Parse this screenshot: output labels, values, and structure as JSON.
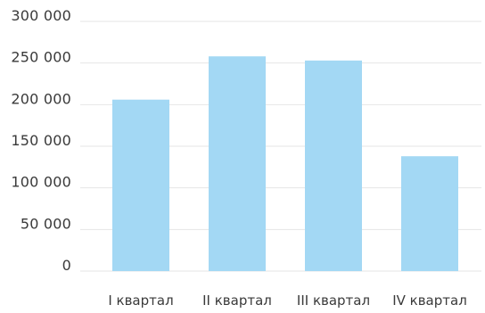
{
  "chart_data": {
    "type": "bar",
    "categories": [
      "I квартал",
      "II квартал",
      "III квартал",
      "IV квартал"
    ],
    "values": [
      206000,
      258000,
      253000,
      138000
    ],
    "ylim": [
      0,
      300000
    ],
    "yticks": [
      0,
      50000,
      100000,
      150000,
      200000,
      250000,
      300000
    ],
    "ytick_labels": [
      "0",
      "50 000",
      "100 000",
      "150 000",
      "200 000",
      "250 000",
      "300 000"
    ],
    "grid": true,
    "legend": "none",
    "colors": {
      "bar": "#a3d8f4",
      "grid": "#e6e6e6",
      "text": "#3a3a3a"
    }
  }
}
